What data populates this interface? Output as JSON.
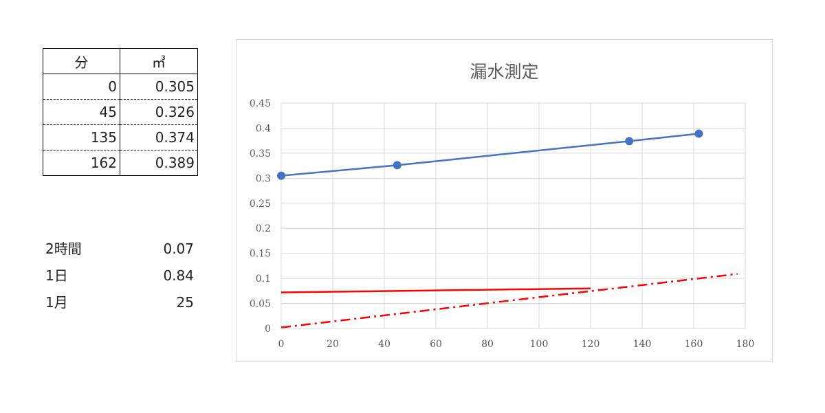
{
  "table": {
    "headers": [
      "分",
      "㎥"
    ],
    "rows": [
      {
        "minutes": "0",
        "volume": "0.305"
      },
      {
        "minutes": "45",
        "volume": "0.326"
      },
      {
        "minutes": "135",
        "volume": "0.374"
      },
      {
        "minutes": "162",
        "volume": "0.389"
      }
    ]
  },
  "summary": [
    {
      "label": "2時間",
      "value": "0.07"
    },
    {
      "label": "1日",
      "value": "0.84"
    },
    {
      "label": "1月",
      "value": "25"
    }
  ],
  "chart_data": {
    "type": "scatter",
    "title": "漏水測定",
    "xlabel": "",
    "ylabel": "",
    "xlim": [
      0,
      180
    ],
    "ylim": [
      0,
      0.45
    ],
    "x_ticks": [
      0,
      20,
      40,
      60,
      80,
      100,
      120,
      140,
      160,
      180
    ],
    "y_ticks": [
      0,
      0.05,
      0.1,
      0.15,
      0.2,
      0.25,
      0.3,
      0.35,
      0.4,
      0.45
    ],
    "grid": true,
    "legend": "none",
    "series": [
      {
        "style": "solid",
        "markers": true,
        "color": "#4472C4",
        "x": [
          0,
          45,
          135,
          162
        ],
        "y": [
          0.305,
          0.326,
          0.374,
          0.389
        ]
      },
      {
        "style": "solid",
        "markers": false,
        "color": "#FF0000",
        "x": [
          0,
          120
        ],
        "y": [
          0.072,
          0.08
        ]
      },
      {
        "style": "dash-dot",
        "markers": false,
        "color": "#FF0000",
        "x": [
          0,
          177
        ],
        "y": [
          0.002,
          0.109
        ]
      }
    ]
  }
}
